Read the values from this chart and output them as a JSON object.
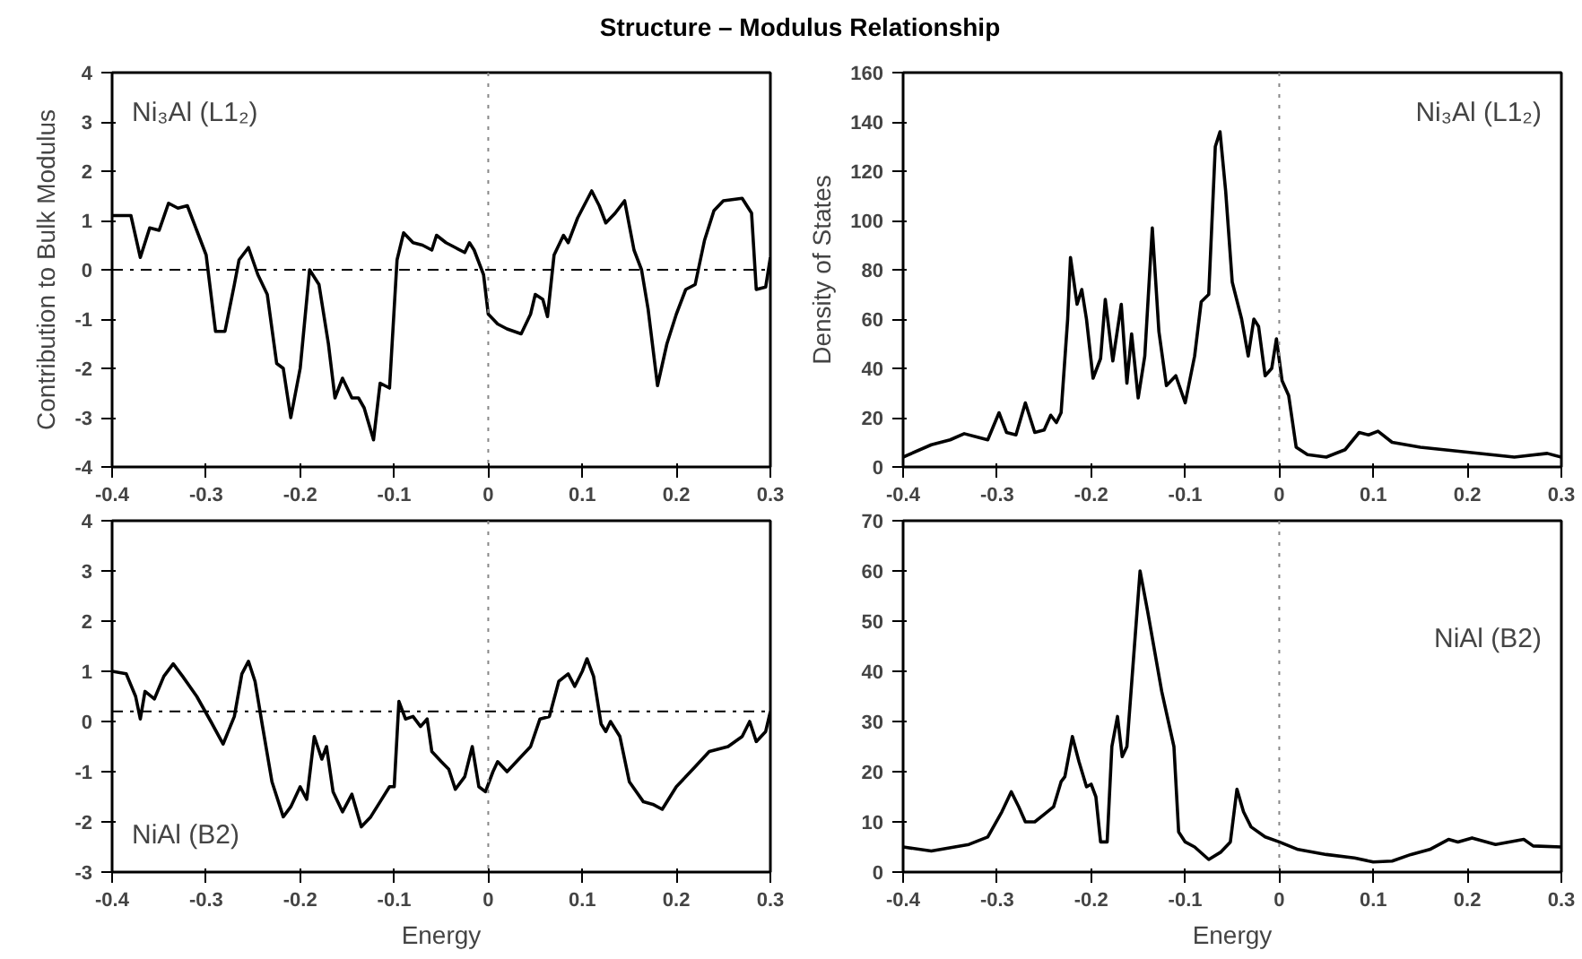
{
  "chart_data": [
    {
      "type": "line",
      "title": "Structure – Modulus Relationship",
      "ylabel": "Contribution to Bulk Modulus",
      "annotations": [
        "Ni₃Al (L1₂)"
      ],
      "xlim": [
        -0.4,
        0.3
      ],
      "xticks": [
        -0.4,
        -0.3,
        -0.2,
        -0.1,
        0,
        0.1,
        0.2,
        0.3
      ],
      "ylim": [
        -4,
        4
      ],
      "yticks": [
        -4,
        -3,
        -2,
        -1,
        0,
        1,
        2,
        3,
        4
      ],
      "grid": false,
      "ref_lines": [
        {
          "axis": "x",
          "value": 0,
          "line_style": "dotted",
          "color": "#888888"
        },
        {
          "axis": "y",
          "value": 0,
          "line_style": "dashdot",
          "color": "#000000"
        }
      ],
      "series": [
        {
          "color": "#000000",
          "x": [
            -0.4,
            -0.38,
            -0.37,
            -0.36,
            -0.35,
            -0.34,
            -0.33,
            -0.32,
            -0.31,
            -0.3,
            -0.29,
            -0.28,
            -0.27,
            -0.265,
            -0.255,
            -0.245,
            -0.235,
            -0.225,
            -0.218,
            -0.21,
            -0.2,
            -0.19,
            -0.18,
            -0.17,
            -0.163,
            -0.155,
            -0.145,
            -0.138,
            -0.132,
            -0.122,
            -0.115,
            -0.105,
            -0.097,
            -0.09,
            -0.08,
            -0.07,
            -0.06,
            -0.055,
            -0.045,
            -0.035,
            -0.025,
            -0.02,
            -0.015,
            -0.005,
            0.0,
            0.01,
            0.02,
            0.035,
            0.045,
            0.05,
            0.058,
            0.063,
            0.07,
            0.08,
            0.085,
            0.095,
            0.11,
            0.118,
            0.125,
            0.135,
            0.145,
            0.155,
            0.163,
            0.17,
            0.18,
            0.19,
            0.2,
            0.21,
            0.22,
            0.23,
            0.24,
            0.25,
            0.27,
            0.28,
            0.285,
            0.295,
            0.3
          ],
          "values": [
            1.1,
            1.1,
            0.25,
            0.85,
            0.8,
            1.35,
            1.25,
            1.3,
            0.8,
            0.3,
            -1.25,
            -1.25,
            -0.3,
            0.2,
            0.45,
            -0.1,
            -0.5,
            -1.9,
            -2.0,
            -3.0,
            -2.0,
            0.0,
            -0.3,
            -1.5,
            -2.6,
            -2.2,
            -2.6,
            -2.6,
            -2.8,
            -3.45,
            -2.3,
            -2.4,
            0.2,
            0.75,
            0.55,
            0.5,
            0.4,
            0.7,
            0.55,
            0.45,
            0.35,
            0.55,
            0.4,
            -0.1,
            -0.9,
            -1.1,
            -1.2,
            -1.3,
            -0.9,
            -0.5,
            -0.6,
            -0.95,
            0.3,
            0.7,
            0.55,
            1.05,
            1.6,
            1.3,
            0.95,
            1.15,
            1.4,
            0.4,
            0.0,
            -0.8,
            -2.35,
            -1.5,
            -0.9,
            -0.4,
            -0.3,
            0.6,
            1.2,
            1.4,
            1.45,
            1.15,
            -0.4,
            -0.35,
            0.25
          ]
        }
      ]
    },
    {
      "type": "line",
      "ylabel": "Density of States",
      "annotations": [
        "Ni₃Al (L1₂)"
      ],
      "xlim": [
        -0.4,
        0.3
      ],
      "xticks": [
        -0.4,
        -0.3,
        -0.2,
        -0.1,
        0,
        0.1,
        0.2,
        0.3
      ],
      "ylim": [
        0,
        160
      ],
      "yticks": [
        0,
        20,
        40,
        60,
        80,
        100,
        120,
        140,
        160
      ],
      "grid": false,
      "ref_lines": [
        {
          "axis": "x",
          "value": 0,
          "line_style": "dotted",
          "color": "#888888"
        }
      ],
      "series": [
        {
          "color": "#000000",
          "x": [
            -0.4,
            -0.37,
            -0.35,
            -0.335,
            -0.32,
            -0.31,
            -0.298,
            -0.29,
            -0.28,
            -0.27,
            -0.26,
            -0.25,
            -0.243,
            -0.237,
            -0.232,
            -0.225,
            -0.222,
            -0.215,
            -0.21,
            -0.205,
            -0.198,
            -0.19,
            -0.185,
            -0.177,
            -0.168,
            -0.162,
            -0.157,
            -0.15,
            -0.143,
            -0.135,
            -0.128,
            -0.12,
            -0.11,
            -0.1,
            -0.09,
            -0.083,
            -0.075,
            -0.068,
            -0.063,
            -0.057,
            -0.05,
            -0.04,
            -0.033,
            -0.027,
            -0.022,
            -0.015,
            -0.008,
            -0.003,
            0.003,
            0.01,
            0.018,
            0.03,
            0.05,
            0.07,
            0.085,
            0.095,
            0.105,
            0.12,
            0.15,
            0.2,
            0.25,
            0.285,
            0.3
          ],
          "values": [
            4,
            9,
            11,
            13.5,
            12,
            11,
            22,
            14,
            13,
            26,
            14,
            15,
            21,
            18,
            22,
            60,
            85,
            66,
            72,
            60,
            36,
            44,
            68,
            43,
            66,
            34,
            54,
            28,
            45,
            97,
            55,
            33,
            37,
            26,
            45,
            67,
            70,
            130,
            136,
            112,
            75,
            60,
            45,
            60,
            57,
            37,
            40,
            52,
            35,
            29,
            8,
            5,
            4,
            7,
            14,
            13,
            14.5,
            10,
            8,
            6,
            4,
            5.5,
            4
          ]
        }
      ]
    },
    {
      "type": "line",
      "xlabel": "Energy",
      "annotations": [
        "NiAl (B2)"
      ],
      "xlim": [
        -0.4,
        0.3
      ],
      "xticks": [
        -0.4,
        -0.3,
        -0.2,
        -0.1,
        0,
        0.1,
        0.2,
        0.3
      ],
      "ylim": [
        -3,
        4
      ],
      "yticks": [
        -3,
        -2,
        -1,
        0,
        1,
        2,
        3,
        4
      ],
      "grid": false,
      "ref_lines": [
        {
          "axis": "x",
          "value": 0,
          "line_style": "dotted",
          "color": "#888888"
        },
        {
          "axis": "y",
          "value": 0.2,
          "line_style": "dashdot",
          "color": "#000000"
        }
      ],
      "series": [
        {
          "color": "#000000",
          "x": [
            -0.4,
            -0.385,
            -0.375,
            -0.37,
            -0.365,
            -0.355,
            -0.345,
            -0.335,
            -0.325,
            -0.31,
            -0.295,
            -0.282,
            -0.27,
            -0.262,
            -0.255,
            -0.248,
            -0.24,
            -0.23,
            -0.218,
            -0.21,
            -0.2,
            -0.193,
            -0.185,
            -0.177,
            -0.172,
            -0.165,
            -0.155,
            -0.145,
            -0.135,
            -0.125,
            -0.115,
            -0.105,
            -0.1,
            -0.095,
            -0.088,
            -0.08,
            -0.072,
            -0.065,
            -0.06,
            -0.05,
            -0.042,
            -0.035,
            -0.025,
            -0.017,
            -0.01,
            -0.003,
            0.005,
            0.01,
            0.02,
            0.03,
            0.045,
            0.055,
            0.065,
            0.075,
            0.085,
            0.092,
            0.1,
            0.105,
            0.112,
            0.12,
            0.125,
            0.13,
            0.14,
            0.15,
            0.165,
            0.175,
            0.185,
            0.2,
            0.22,
            0.235,
            0.255,
            0.27,
            0.278,
            0.285,
            0.295,
            0.3
          ],
          "values": [
            1.0,
            0.95,
            0.5,
            0.05,
            0.6,
            0.45,
            0.9,
            1.15,
            0.9,
            0.5,
            0.0,
            -0.45,
            0.1,
            0.95,
            1.2,
            0.8,
            -0.1,
            -1.2,
            -1.9,
            -1.7,
            -1.3,
            -1.55,
            -0.3,
            -0.75,
            -0.5,
            -1.4,
            -1.8,
            -1.45,
            -2.1,
            -1.9,
            -1.6,
            -1.3,
            -1.3,
            0.4,
            0.05,
            0.1,
            -0.1,
            0.05,
            -0.6,
            -0.8,
            -0.95,
            -1.35,
            -1.1,
            -0.5,
            -1.3,
            -1.4,
            -1.0,
            -0.8,
            -1.0,
            -0.8,
            -0.5,
            0.05,
            0.1,
            0.8,
            0.95,
            0.7,
            1.0,
            1.25,
            0.9,
            -0.05,
            -0.2,
            0.0,
            -0.3,
            -1.2,
            -1.6,
            -1.65,
            -1.75,
            -1.3,
            -0.9,
            -0.6,
            -0.5,
            -0.3,
            0.0,
            -0.4,
            -0.2,
            0.2
          ]
        }
      ]
    },
    {
      "type": "line",
      "xlabel": "Energy",
      "annotations": [
        "NiAl (B2)"
      ],
      "xlim": [
        -0.4,
        0.3
      ],
      "xticks": [
        -0.4,
        -0.3,
        -0.2,
        -0.1,
        0,
        0.1,
        0.2,
        0.3
      ],
      "ylim": [
        0,
        70
      ],
      "yticks": [
        0,
        10,
        20,
        30,
        40,
        50,
        60,
        70
      ],
      "grid": false,
      "ref_lines": [
        {
          "axis": "x",
          "value": 0,
          "line_style": "dotted",
          "color": "#888888"
        }
      ],
      "series": [
        {
          "color": "#000000",
          "x": [
            -0.4,
            -0.37,
            -0.33,
            -0.31,
            -0.295,
            -0.285,
            -0.277,
            -0.27,
            -0.26,
            -0.25,
            -0.24,
            -0.232,
            -0.228,
            -0.22,
            -0.213,
            -0.205,
            -0.2,
            -0.195,
            -0.19,
            -0.183,
            -0.178,
            -0.172,
            -0.167,
            -0.162,
            -0.148,
            -0.14,
            -0.125,
            -0.112,
            -0.107,
            -0.1,
            -0.09,
            -0.075,
            -0.062,
            -0.052,
            -0.045,
            -0.038,
            -0.03,
            -0.015,
            0.0,
            0.02,
            0.05,
            0.08,
            0.1,
            0.12,
            0.14,
            0.16,
            0.18,
            0.19,
            0.205,
            0.23,
            0.26,
            0.27,
            0.3
          ],
          "values": [
            5,
            4.2,
            5.5,
            7,
            12,
            16,
            13,
            10,
            10,
            11.5,
            13,
            18,
            19,
            27,
            22,
            17,
            17.5,
            15,
            6,
            6,
            25,
            31,
            23,
            25,
            60,
            52,
            36,
            25,
            8,
            6,
            5,
            2.5,
            4,
            6,
            16.5,
            12,
            9,
            7,
            6,
            4.5,
            3.5,
            2.8,
            2,
            2.2,
            3.5,
            4.5,
            6.5,
            6,
            6.8,
            5.5,
            6.5,
            5.2,
            5
          ]
        }
      ]
    }
  ]
}
